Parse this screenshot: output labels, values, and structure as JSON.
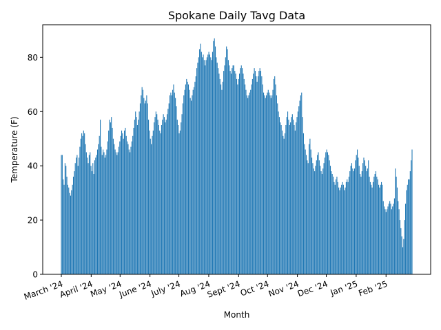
{
  "chart_data": {
    "type": "bar",
    "title": "Spokane Daily Tavg Data",
    "xlabel": "Month",
    "ylabel": "Temperature (F)",
    "ylim": [
      0,
      92
    ],
    "yticks": [
      0,
      20,
      40,
      60,
      80
    ],
    "grid": false,
    "bar_color": "#1f77b4",
    "x_start": "2024-03-01",
    "x_end": "2025-02-28",
    "month_ticks": [
      {
        "label": "March '24",
        "date": "2024-03-01"
      },
      {
        "label": "April '24",
        "date": "2024-04-01"
      },
      {
        "label": "May '24",
        "date": "2024-05-01"
      },
      {
        "label": "June '24",
        "date": "2024-06-01"
      },
      {
        "label": "July '24",
        "date": "2024-07-01"
      },
      {
        "label": "Aug '24",
        "date": "2024-08-01"
      },
      {
        "label": "Sept '24",
        "date": "2024-09-01"
      },
      {
        "label": "Oct '24",
        "date": "2024-10-01"
      },
      {
        "label": "Nov '24",
        "date": "2024-11-01"
      },
      {
        "label": "Dec '24",
        "date": "2024-12-01"
      },
      {
        "label": "Jan '25",
        "date": "2025-01-01"
      },
      {
        "label": "Feb '25",
        "date": "2025-02-01"
      }
    ],
    "values": [
      44,
      44,
      35,
      33,
      41,
      40,
      36,
      33,
      32,
      30,
      29,
      31,
      33,
      36,
      38,
      41,
      43,
      44,
      40,
      43,
      47,
      50,
      52,
      51,
      53,
      52,
      48,
      45,
      43,
      41,
      44,
      45,
      40,
      38,
      41,
      37,
      42,
      43,
      44,
      46,
      48,
      51,
      57,
      47,
      44,
      46,
      45,
      43,
      44,
      46,
      49,
      53,
      57,
      56,
      58,
      54,
      50,
      48,
      46,
      45,
      44,
      45,
      47,
      49,
      51,
      53,
      52,
      50,
      53,
      54,
      51,
      49,
      48,
      46,
      45,
      47,
      49,
      51,
      54,
      57,
      60,
      58,
      55,
      57,
      60,
      63,
      66,
      69,
      68,
      65,
      63,
      64,
      66,
      63,
      57,
      53,
      50,
      48,
      51,
      53,
      56,
      58,
      60,
      59,
      57,
      55,
      53,
      52,
      55,
      57,
      59,
      58,
      56,
      57,
      59,
      61,
      63,
      66,
      67,
      66,
      68,
      70,
      67,
      65,
      62,
      57,
      55,
      52,
      53,
      56,
      59,
      63,
      66,
      68,
      70,
      72,
      71,
      70,
      68,
      65,
      64,
      66,
      68,
      69,
      71,
      73,
      76,
      78,
      80,
      83,
      85,
      82,
      80,
      81,
      79,
      77,
      79,
      80,
      81,
      82,
      81,
      80,
      79,
      82,
      86,
      87,
      84,
      80,
      78,
      76,
      74,
      72,
      70,
      68,
      71,
      75,
      77,
      80,
      84,
      83,
      79,
      77,
      75,
      74,
      76,
      77,
      77,
      75,
      74,
      72,
      70,
      72,
      74,
      76,
      77,
      76,
      74,
      72,
      70,
      68,
      66,
      65,
      66,
      67,
      68,
      70,
      72,
      74,
      76,
      75,
      73,
      71,
      73,
      75,
      76,
      75,
      73,
      70,
      67,
      66,
      65,
      66,
      67,
      68,
      67,
      66,
      65,
      66,
      68,
      72,
      73,
      70,
      66,
      63,
      60,
      58,
      56,
      55,
      53,
      51,
      50,
      52,
      55,
      58,
      60,
      57,
      55,
      56,
      58,
      59,
      57,
      55,
      53,
      56,
      58,
      60,
      62,
      64,
      66,
      67,
      58,
      52,
      48,
      46,
      44,
      42,
      41,
      48,
      50,
      46,
      43,
      41,
      39,
      38,
      40,
      42,
      44,
      45,
      42,
      40,
      38,
      37,
      39,
      41,
      43,
      45,
      46,
      45,
      44,
      42,
      40,
      38,
      37,
      36,
      34,
      33,
      35,
      36,
      34,
      32,
      31,
      32,
      33,
      34,
      33,
      31,
      32,
      34,
      35,
      34,
      36,
      38,
      40,
      41,
      39,
      38,
      39,
      42,
      44,
      46,
      43,
      40,
      37,
      36,
      38,
      41,
      43,
      42,
      40,
      38,
      39,
      42,
      36,
      34,
      33,
      32,
      34,
      36,
      37,
      38,
      36,
      35,
      33,
      32,
      33,
      34,
      33,
      27,
      25,
      24,
      23,
      24,
      25,
      26,
      27,
      26,
      24,
      25,
      26,
      28,
      39,
      36,
      32,
      27,
      24,
      20,
      17,
      14,
      10,
      13,
      20,
      26,
      31,
      33,
      35,
      35,
      38,
      42,
      46
    ]
  }
}
